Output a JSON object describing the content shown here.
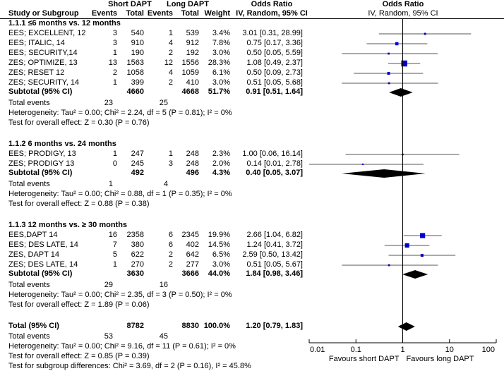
{
  "header": {
    "study_col": "Study or Subgroup",
    "short_group": "Short DAPT",
    "long_group": "Long DAPT",
    "events": "Events",
    "total": "Total",
    "weight": "Weight",
    "or_title": "Odds Ratio",
    "or_method": "IV, Random, 95% CI",
    "plot_title": "Odds Ratio",
    "plot_method": "IV, Random, 95% CI"
  },
  "subtotal_label": "Subtotal (95% CI)",
  "total_events_label": "Total events",
  "colors": {
    "marker": "#0000cc",
    "diamond": "#000000",
    "ci_line": "#555555"
  },
  "chart_data": {
    "type": "forest",
    "title": "Odds Ratio IV, Random, 95% CI",
    "xscale": "log",
    "xlim": [
      0.01,
      100
    ],
    "ticks": [
      "0.01",
      "0.1",
      "1",
      "10",
      "100"
    ],
    "xlabel_left": "Favours short DAPT",
    "xlabel_right": "Favours long DAPT",
    "groups": [
      {
        "label": "1.1.1 ≤6 months vs. 12 months",
        "studies": [
          {
            "name": "EES; EXCELLENT, 12",
            "se": "3",
            "st": "540",
            "le": "1",
            "lt": "539",
            "w": "3.4%",
            "ci": "3.01 [0.31, 28.99]",
            "or": 3.01,
            "lo": 0.31,
            "hi": 28.99,
            "weight": 3.4
          },
          {
            "name": "EES; ITALIC, 14",
            "se": "3",
            "st": "910",
            "le": "4",
            "lt": "912",
            "w": "7.8%",
            "ci": "0.75 [0.17, 3.36]",
            "or": 0.75,
            "lo": 0.17,
            "hi": 3.36,
            "weight": 7.8
          },
          {
            "name": "EES; SECURITY,14",
            "se": "1",
            "st": "190",
            "le": "2",
            "lt": "192",
            "w": "3.0%",
            "ci": "0.50 [0.05, 5.59]",
            "or": 0.5,
            "lo": 0.05,
            "hi": 5.59,
            "weight": 3.0
          },
          {
            "name": "ZES; OPTIMIZE, 13",
            "se": "13",
            "st": "1563",
            "le": "12",
            "lt": "1556",
            "w": "28.3%",
            "ci": "1.08 [0.49, 2.37]",
            "or": 1.08,
            "lo": 0.49,
            "hi": 2.37,
            "weight": 28.3
          },
          {
            "name": "ZES; RESET 12",
            "se": "2",
            "st": "1058",
            "le": "4",
            "lt": "1059",
            "w": "6.1%",
            "ci": "0.50 [0.09, 2.73]",
            "or": 0.5,
            "lo": 0.09,
            "hi": 2.73,
            "weight": 6.1
          },
          {
            "name": "ZES; SECURITY, 14",
            "se": "1",
            "st": "399",
            "le": "2",
            "lt": "410",
            "w": "3.0%",
            "ci": "0.51 [0.05, 5.68]",
            "or": 0.51,
            "lo": 0.05,
            "hi": 5.68,
            "weight": 3.0
          }
        ],
        "subtotal": {
          "st": "4660",
          "lt": "4668",
          "w": "51.7%",
          "ci": "0.91 [0.51, 1.64]",
          "or": 0.91,
          "lo": 0.51,
          "hi": 1.64
        },
        "total_events": {
          "short": "23",
          "long": "25"
        },
        "heterogeneity": "Heterogeneity: Tau² = 0.00; Chi² = 2.24, df = 5 (P = 0.81); I² = 0%",
        "overall": "Test for overall effect: Z = 0.30 (P = 0.76)"
      },
      {
        "label": "1.1.2 6 months vs. 24 months",
        "studies": [
          {
            "name": "EES; PRODIGY, 13",
            "se": "1",
            "st": "247",
            "le": "1",
            "lt": "248",
            "w": "2.3%",
            "ci": "1.00 [0.06, 16.14]",
            "or": 1.0,
            "lo": 0.06,
            "hi": 16.14,
            "weight": 2.3
          },
          {
            "name": "ZES; PRODIGY 13",
            "se": "0",
            "st": "245",
            "le": "3",
            "lt": "248",
            "w": "2.0%",
            "ci": "0.14 [0.01, 2.78]",
            "or": 0.14,
            "lo": 0.01,
            "hi": 2.78,
            "weight": 2.0
          }
        ],
        "subtotal": {
          "st": "492",
          "lt": "496",
          "w": "4.3%",
          "ci": "0.40 [0.05, 3.07]",
          "or": 0.4,
          "lo": 0.05,
          "hi": 3.07
        },
        "total_events": {
          "short": "1",
          "long": "4"
        },
        "heterogeneity": "Heterogeneity: Tau² = 0.00; Chi² = 0.88, df = 1 (P = 0.35); I² = 0%",
        "overall": "Test for overall effect: Z = 0.88 (P = 0.38)"
      },
      {
        "label": "1.1.3 12 months vs. ≥ 30 months",
        "studies": [
          {
            "name": "EES,DAPT 14",
            "se": "16",
            "st": "2358",
            "le": "6",
            "lt": "2345",
            "w": "19.9%",
            "ci": "2.66 [1.04, 6.82]",
            "or": 2.66,
            "lo": 1.04,
            "hi": 6.82,
            "weight": 19.9
          },
          {
            "name": "EES; DES LATE, 14",
            "se": "7",
            "st": "380",
            "le": "6",
            "lt": "402",
            "w": "14.5%",
            "ci": "1.24 [0.41, 3.72]",
            "or": 1.24,
            "lo": 0.41,
            "hi": 3.72,
            "weight": 14.5
          },
          {
            "name": "ZES, DAPT 14",
            "se": "5",
            "st": "622",
            "le": "2",
            "lt": "642",
            "w": "6.5%",
            "ci": "2.59 [0.50, 13.42]",
            "or": 2.59,
            "lo": 0.5,
            "hi": 13.42,
            "weight": 6.5
          },
          {
            "name": "ZES; DES LATE, 14",
            "se": "1",
            "st": "270",
            "le": "2",
            "lt": "277",
            "w": "3.0%",
            "ci": "0.51 [0.05, 5.67]",
            "or": 0.51,
            "lo": 0.05,
            "hi": 5.67,
            "weight": 3.0
          }
        ],
        "subtotal": {
          "st": "3630",
          "lt": "3666",
          "w": "44.0%",
          "ci": "1.84 [0.98, 3.46]",
          "or": 1.84,
          "lo": 0.98,
          "hi": 3.46
        },
        "total_events": {
          "short": "29",
          "long": "16"
        },
        "heterogeneity": "Heterogeneity: Tau² = 0.00; Chi² = 2.35, df = 3 (P = 0.50); I² = 0%",
        "overall": "Test for overall effect: Z = 1.89 (P = 0.06)"
      }
    ],
    "total": {
      "label": "Total (95% CI)",
      "st": "8782",
      "lt": "8830",
      "w": "100.0%",
      "ci": "1.20 [0.79, 1.83]",
      "or": 1.2,
      "lo": 0.79,
      "hi": 1.83,
      "total_events": {
        "short": "53",
        "long": "45"
      },
      "heterogeneity": "Heterogeneity: Tau² = 0.00; Chi² = 9.16, df = 11 (P = 0.61); I² = 0%",
      "overall": "Test for overall effect: Z = 0.85 (P = 0.39)",
      "subgroup_diff": "Test for subgroup differences: Chi² = 3.69, df = 2 (P = 0.16), I² = 45.8%"
    }
  }
}
